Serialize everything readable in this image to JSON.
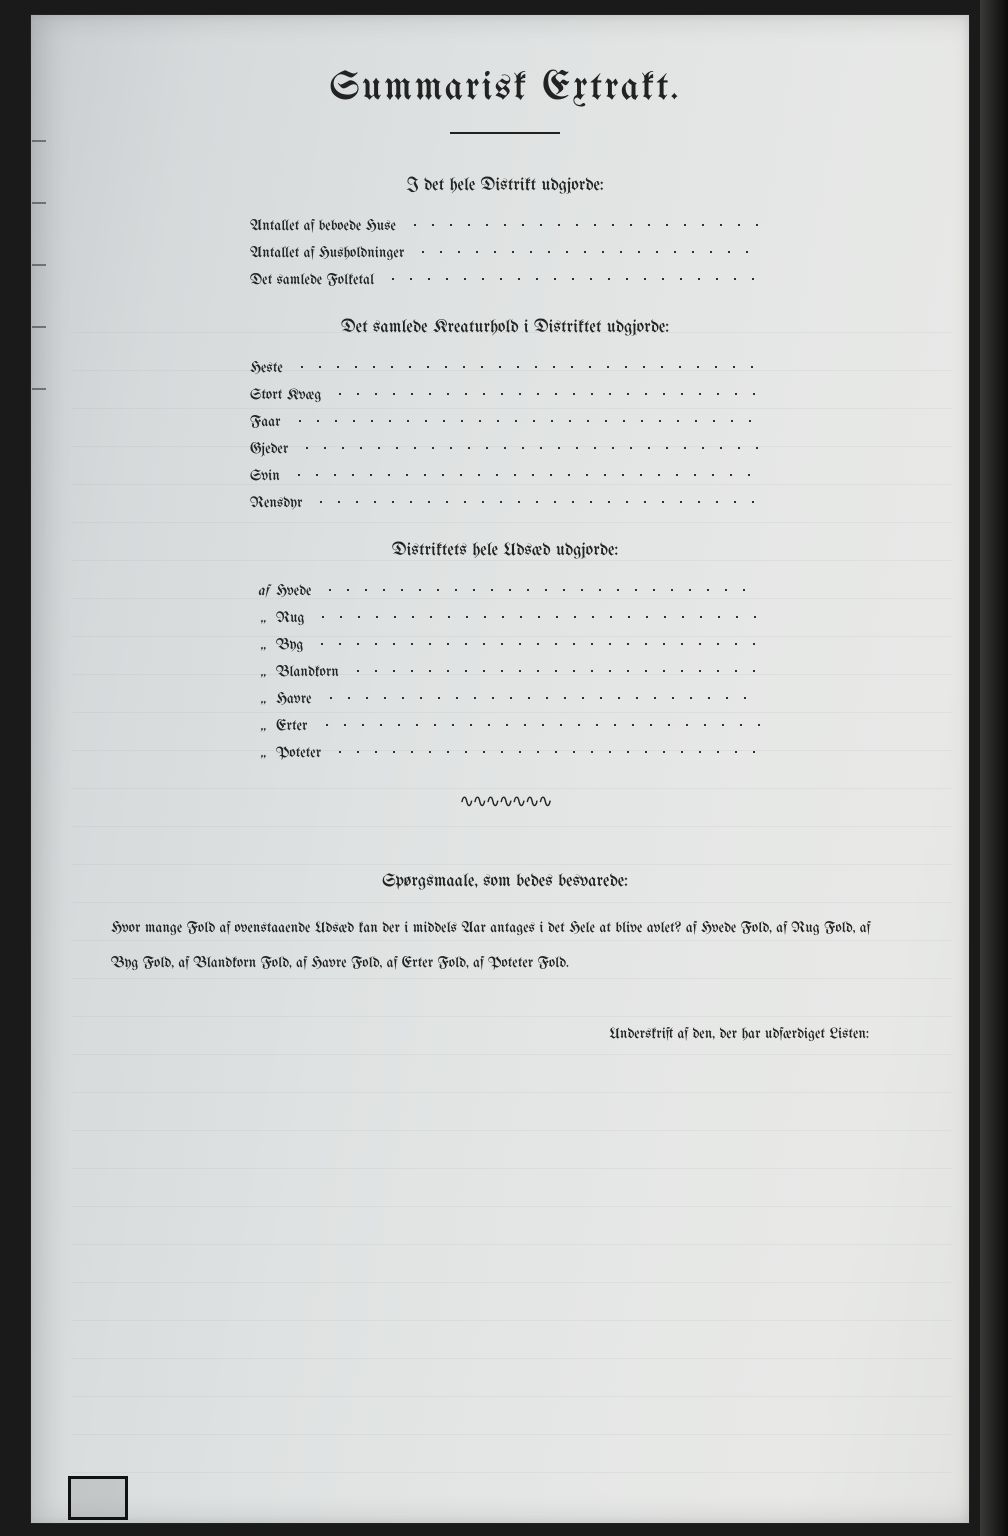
{
  "colors": {
    "page_bg_start": "#c9cdd0",
    "page_bg_end": "#e8e9e7",
    "ink": "#222222",
    "frame": "#1a1a1a",
    "ruled": "rgba(110,120,110,0.08)"
  },
  "typography": {
    "title_family": "blackletter",
    "title_size_pt": 30,
    "body_size_pt": 11,
    "heading_size_pt": 13
  },
  "title": "Summarisk Extrakt.",
  "section1": {
    "heading": "I det hele Distrikt udgjorde:",
    "items": [
      "Antallet af beboede Huse",
      "Antallet af Husholdninger",
      "Det samlede Folketal"
    ]
  },
  "section2": {
    "heading": "Det samlede Kreaturhold i Distriktet udgjorde:",
    "items": [
      "Heste",
      "Stort Kvæg",
      "Faar",
      "Gjeder",
      "Svin",
      "Rensdyr"
    ]
  },
  "section3": {
    "heading": "Distriktets hele Udsæd udgjorde:",
    "prefix_first": "af",
    "prefix_rest": "„",
    "items": [
      "Hvede",
      "Rug",
      "Byg",
      "Blandkorn",
      "Havre",
      "Erter",
      "Poteter"
    ]
  },
  "section4": {
    "heading": "Spørgsmaale, som bedes besvarede:",
    "body": "Hvor mange Fold af ovenstaaende Udsæd kan der i middels Aar antages i det Hele at blive avlet?  af Hvede            Fold, af Rug            Fold, af Byg            Fold, af Blandkorn            Fold, af Havre            Fold, af Erter            Fold, af Poteter            Fold."
  },
  "signature": "Underskrift af den, der har udfærdiget Listen:"
}
